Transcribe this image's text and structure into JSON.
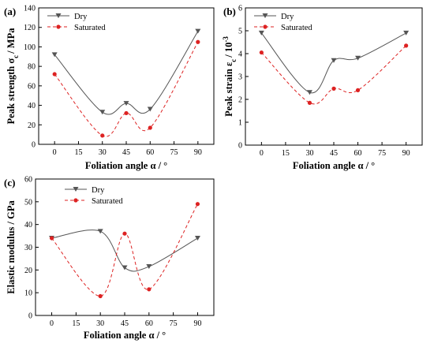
{
  "chart_data": [
    {
      "type": "line",
      "panel_label": "(a)",
      "xlabel": "Foliation angle α / °",
      "ylabel_main": "Peak strength σ",
      "ylabel_sub": "c",
      "ylabel_tail": "/ MPa",
      "xlim": [
        -10,
        100
      ],
      "ylim": [
        0,
        140
      ],
      "xticks": [
        0,
        15,
        30,
        45,
        60,
        75,
        90
      ],
      "yticks": [
        0,
        20,
        40,
        60,
        80,
        100,
        120,
        140
      ],
      "legend_position": "top-left",
      "series": [
        {
          "name": "Dry",
          "color": "#555555",
          "marker": "triangle-down",
          "dash": "solid",
          "x": [
            0,
            30,
            45,
            60,
            90
          ],
          "y": [
            92,
            33,
            42,
            36,
            116
          ]
        },
        {
          "name": "Saturated",
          "color": "#dd2222",
          "marker": "circle",
          "dash": "dashed",
          "x": [
            0,
            30,
            45,
            60,
            90
          ],
          "y": [
            72,
            9,
            32,
            17,
            105
          ]
        }
      ]
    },
    {
      "type": "line",
      "panel_label": "(b)",
      "xlabel": "Foliation angle α / °",
      "ylabel_main": "Peak strain ε",
      "ylabel_sub": "c",
      "ylabel_tail": "/ 10",
      "ylabel_sup": "-3",
      "xlim": [
        -10,
        100
      ],
      "ylim": [
        0,
        6
      ],
      "xticks": [
        0,
        15,
        30,
        45,
        60,
        75,
        90
      ],
      "yticks": [
        0,
        1,
        2,
        3,
        4,
        5,
        6
      ],
      "legend_position": "top-left",
      "series": [
        {
          "name": "Dry",
          "color": "#555555",
          "marker": "triangle-down",
          "dash": "solid",
          "x": [
            0,
            30,
            45,
            60,
            90
          ],
          "y": [
            4.9,
            2.3,
            3.7,
            3.8,
            4.9
          ]
        },
        {
          "name": "Saturated",
          "color": "#dd2222",
          "marker": "circle",
          "dash": "dashed",
          "x": [
            0,
            30,
            45,
            60,
            90
          ],
          "y": [
            4.05,
            1.85,
            2.47,
            2.4,
            4.35
          ]
        }
      ]
    },
    {
      "type": "line",
      "panel_label": "(c)",
      "xlabel": "Foliation angle α / °",
      "ylabel_main": "Elastic modulus / GPa",
      "xlim": [
        -10,
        100
      ],
      "ylim": [
        0,
        60
      ],
      "xticks": [
        0,
        15,
        30,
        45,
        60,
        75,
        90
      ],
      "yticks": [
        0,
        10,
        20,
        30,
        40,
        50,
        60
      ],
      "legend_position": "top-right",
      "series": [
        {
          "name": "Dry",
          "color": "#555555",
          "marker": "triangle-down",
          "dash": "solid",
          "x": [
            0,
            30,
            45,
            60,
            90
          ],
          "y": [
            34,
            37,
            21,
            21.5,
            34
          ]
        },
        {
          "name": "Saturated",
          "color": "#dd2222",
          "marker": "circle",
          "dash": "dashed",
          "x": [
            0,
            30,
            45,
            60,
            90
          ],
          "y": [
            34,
            8.5,
            36,
            11.5,
            49
          ]
        }
      ]
    }
  ]
}
